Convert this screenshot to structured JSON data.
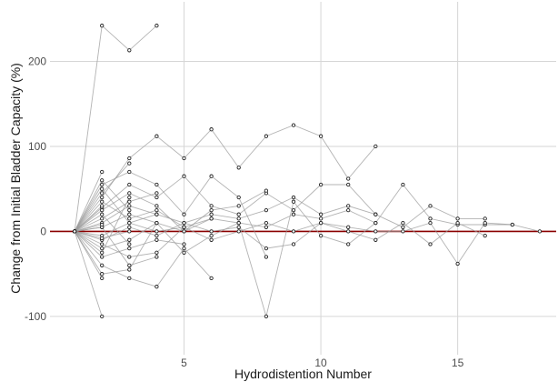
{
  "chart_data": {
    "type": "line",
    "xlabel": "Hydrodistention Number",
    "ylabel": "Change from Initial Bladder Capacity (%)",
    "xlim": [
      0.1,
      18.6
    ],
    "ylim": [
      -145,
      270
    ],
    "x_ticks": [
      5,
      10,
      15
    ],
    "y_ticks": [
      -100,
      0,
      100,
      200
    ],
    "x_tick_labels": [
      "5",
      "10",
      "15"
    ],
    "y_tick_labels": [
      "-100",
      "0",
      "100",
      "200"
    ],
    "grid": true,
    "reference_line": {
      "y": 0,
      "color": "#8b0000"
    },
    "colors": {
      "line": "#9a9a9a",
      "point_stroke": "#222222",
      "point_fill": "#ffffff",
      "grid": "#d6d6d6"
    },
    "series": [
      {
        "x": [
          1,
          2,
          3,
          4
        ],
        "y": [
          0,
          242,
          213,
          242
        ]
      },
      {
        "x": [
          1,
          2,
          3,
          4,
          5,
          6,
          7,
          8,
          9,
          10,
          11,
          12
        ],
        "y": [
          0,
          40,
          86,
          112,
          86,
          120,
          75,
          112,
          125,
          112,
          62,
          100
        ]
      },
      {
        "x": [
          1,
          2,
          3,
          4,
          5,
          6,
          7,
          8,
          9,
          10,
          11,
          12
        ],
        "y": [
          0,
          28,
          55,
          40,
          65,
          30,
          20,
          45,
          25,
          55,
          55,
          20
        ]
      },
      {
        "x": [
          1,
          2,
          3,
          4,
          5,
          6,
          7,
          8,
          9,
          10,
          11,
          12,
          13,
          14,
          15,
          16
        ],
        "y": [
          0,
          10,
          30,
          20,
          10,
          20,
          15,
          25,
          40,
          20,
          30,
          20,
          5,
          30,
          15,
          15
        ]
      },
      {
        "x": [
          1,
          2,
          3,
          4,
          5,
          6,
          7,
          8,
          9,
          10,
          11,
          12,
          13,
          14,
          15,
          16,
          17,
          18
        ],
        "y": [
          0,
          5,
          20,
          10,
          0,
          15,
          10,
          5,
          20,
          15,
          25,
          10,
          55,
          15,
          8,
          8,
          8,
          0
        ]
      },
      {
        "x": [
          1,
          2,
          3,
          4,
          5,
          6,
          7,
          8,
          9,
          10,
          11,
          12,
          13,
          14,
          15,
          16,
          17
        ],
        "y": [
          0,
          -5,
          10,
          0,
          5,
          -10,
          0,
          10,
          0,
          10,
          5,
          0,
          0,
          10,
          -38,
          10,
          8
        ]
      },
      {
        "x": [
          1,
          2,
          3,
          4,
          5,
          6,
          7,
          8,
          9,
          10,
          11,
          12
        ],
        "y": [
          0,
          -20,
          -10,
          10,
          -25,
          -5,
          10,
          -100,
          35,
          -5,
          -15,
          10
        ]
      },
      {
        "x": [
          1,
          2,
          3,
          4,
          5,
          6,
          7,
          8,
          9,
          10,
          11,
          12,
          13,
          14,
          15,
          16
        ],
        "y": [
          0,
          -10,
          5,
          -5,
          10,
          0,
          5,
          -20,
          -15,
          10,
          0,
          -10,
          10,
          -15,
          10,
          -5
        ]
      },
      {
        "x": [
          1,
          2,
          3,
          4,
          5,
          6,
          7,
          8
        ],
        "y": [
          0,
          55,
          70,
          55,
          20,
          65,
          40,
          -30
        ]
      },
      {
        "x": [
          1,
          2,
          3,
          4,
          5,
          6
        ],
        "y": [
          0,
          -40,
          -55,
          -65,
          -20,
          -55
        ]
      },
      {
        "x": [
          1,
          2,
          3,
          4,
          5,
          6,
          7,
          8
        ],
        "y": [
          0,
          25,
          45,
          30,
          0,
          25,
          30,
          48
        ]
      },
      {
        "x": [
          1,
          2,
          3,
          4,
          5
        ],
        "y": [
          0,
          -30,
          -20,
          -10,
          -15
        ]
      },
      {
        "x": [
          1,
          2,
          3,
          4
        ],
        "y": [
          0,
          15,
          35,
          45
        ]
      },
      {
        "x": [
          1,
          2,
          3
        ],
        "y": [
          0,
          45,
          80
        ]
      },
      {
        "x": [
          1,
          2,
          3,
          4,
          5,
          6
        ],
        "y": [
          0,
          -15,
          -30,
          -25,
          5,
          15
        ]
      },
      {
        "x": [
          1,
          2,
          3
        ],
        "y": [
          0,
          60,
          25
        ]
      },
      {
        "x": [
          1,
          2,
          3,
          4
        ],
        "y": [
          0,
          -50,
          -45,
          10
        ]
      },
      {
        "x": [
          1,
          2,
          3
        ],
        "y": [
          0,
          20,
          -15
        ]
      },
      {
        "x": [
          1,
          2
        ],
        "y": [
          0,
          -100
        ]
      },
      {
        "x": [
          1,
          2,
          3,
          4,
          5
        ],
        "y": [
          0,
          35,
          15,
          25,
          5
        ]
      },
      {
        "x": [
          1,
          2,
          3,
          4
        ],
        "y": [
          0,
          5,
          -40,
          -30
        ]
      },
      {
        "x": [
          1,
          2,
          3
        ],
        "y": [
          0,
          -8,
          0
        ]
      },
      {
        "x": [
          1,
          2,
          3,
          4
        ],
        "y": [
          0,
          50,
          10,
          20
        ]
      },
      {
        "x": [
          1,
          2,
          3
        ],
        "y": [
          0,
          -25,
          40
        ]
      },
      {
        "x": [
          1,
          2
        ],
        "y": [
          0,
          30
        ]
      },
      {
        "x": [
          1,
          2
        ],
        "y": [
          0,
          -55
        ]
      },
      {
        "x": [
          1,
          2
        ],
        "y": [
          0,
          70
        ]
      },
      {
        "x": [
          1,
          2
        ],
        "y": [
          0,
          8
        ]
      }
    ]
  }
}
